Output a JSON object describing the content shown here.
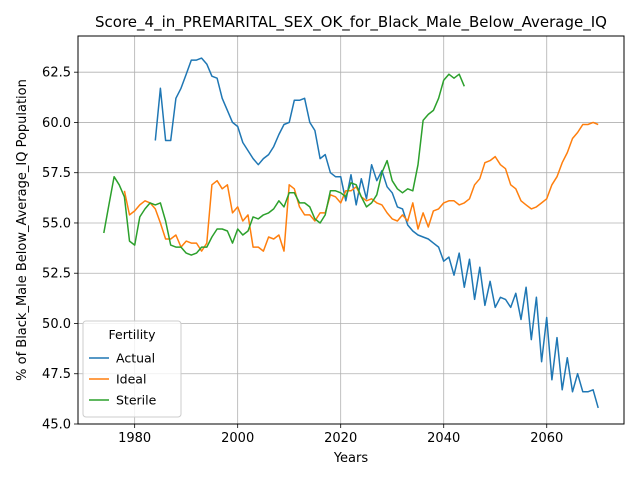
{
  "chart_data": {
    "type": "line",
    "title": "Score_4_in_PREMARITAL_SEX_OK_for_Black_Male_Below_Average_IQ",
    "xlabel": "Years",
    "ylabel": "% of Black_Male Below_Average_IQ Population",
    "xlim": [
      1969,
      2075
    ],
    "ylim": [
      45.0,
      64.3
    ],
    "xticks": [
      1980,
      2000,
      2020,
      2040,
      2060
    ],
    "yticks": [
      45.0,
      47.5,
      50.0,
      52.5,
      55.0,
      57.5,
      60.0,
      62.5
    ],
    "ytick_labels": [
      "45.0",
      "47.5",
      "50.0",
      "52.5",
      "55.0",
      "57.5",
      "60.0",
      "62.5"
    ],
    "grid": true,
    "legend": {
      "title": "Fertility",
      "placement": "lower-left"
    },
    "series": [
      {
        "name": "Actual",
        "color": "#1f77b4",
        "x": [
          1984,
          1985,
          1986,
          1987,
          1988,
          1989,
          1990,
          1991,
          1992,
          1993,
          1994,
          1995,
          1996,
          1997,
          1998,
          1999,
          2000,
          2001,
          2002,
          2003,
          2004,
          2005,
          2006,
          2007,
          2008,
          2009,
          2010,
          2011,
          2012,
          2013,
          2014,
          2015,
          2016,
          2017,
          2018,
          2019,
          2020,
          2021,
          2022,
          2023,
          2024,
          2025,
          2026,
          2027,
          2028,
          2029,
          2030,
          2031,
          2032,
          2033,
          2034,
          2035,
          2036,
          2037,
          2038,
          2039,
          2040,
          2041,
          2042,
          2043,
          2044,
          2045,
          2046,
          2047,
          2048,
          2049,
          2050,
          2051,
          2052,
          2053,
          2054,
          2055,
          2056,
          2057,
          2058,
          2059,
          2060,
          2061,
          2062,
          2063,
          2064,
          2065,
          2066,
          2067,
          2068,
          2069,
          2070
        ],
        "values": [
          59.1,
          61.7,
          59.1,
          59.1,
          61.2,
          61.7,
          62.4,
          63.1,
          63.1,
          63.2,
          62.9,
          62.3,
          62.2,
          61.2,
          60.6,
          60.0,
          59.8,
          59.0,
          58.6,
          58.2,
          57.9,
          58.2,
          58.4,
          58.8,
          59.4,
          59.9,
          60.0,
          61.1,
          61.1,
          61.2,
          60.0,
          59.6,
          58.2,
          58.4,
          57.5,
          57.3,
          57.3,
          56.1,
          57.4,
          55.9,
          57.2,
          56.2,
          57.9,
          57.1,
          57.6,
          56.8,
          56.5,
          55.8,
          55.7,
          54.9,
          54.6,
          54.4,
          54.3,
          54.2,
          54.0,
          53.8,
          53.1,
          53.3,
          52.4,
          53.5,
          51.8,
          53.2,
          51.2,
          52.8,
          50.9,
          52.1,
          50.8,
          51.3,
          51.2,
          50.8,
          51.5,
          50.2,
          51.8,
          49.2,
          51.3,
          48.1,
          50.3,
          47.2,
          49.3,
          46.7,
          48.3,
          46.6,
          47.5,
          46.6,
          46.6,
          46.7,
          45.8
        ]
      },
      {
        "name": "Ideal",
        "color": "#ff7f0e",
        "x": [
          1978,
          1979,
          1980,
          1981,
          1982,
          1983,
          1984,
          1985,
          1986,
          1987,
          1988,
          1989,
          1990,
          1991,
          1992,
          1993,
          1994,
          1995,
          1996,
          1997,
          1998,
          1999,
          2000,
          2001,
          2002,
          2003,
          2004,
          2005,
          2006,
          2007,
          2008,
          2009,
          2010,
          2011,
          2012,
          2013,
          2014,
          2015,
          2016,
          2017,
          2018,
          2019,
          2020,
          2021,
          2022,
          2023,
          2024,
          2025,
          2026,
          2027,
          2028,
          2029,
          2030,
          2031,
          2032,
          2033,
          2034,
          2035,
          2036,
          2037,
          2038,
          2039,
          2040,
          2041,
          2042,
          2043,
          2044,
          2045,
          2046,
          2047,
          2048,
          2049,
          2050,
          2051,
          2052,
          2053,
          2054,
          2055,
          2056,
          2057,
          2058,
          2059,
          2060,
          2061,
          2062,
          2063,
          2064,
          2065,
          2066,
          2067,
          2068,
          2069,
          2070
        ],
        "values": [
          56.6,
          55.4,
          55.6,
          55.9,
          56.1,
          56.0,
          55.7,
          55.0,
          54.2,
          54.2,
          54.4,
          53.8,
          54.1,
          54.0,
          54.0,
          53.6,
          54.0,
          56.9,
          57.1,
          56.7,
          56.9,
          55.5,
          55.8,
          55.1,
          55.4,
          53.8,
          53.8,
          53.6,
          54.3,
          54.2,
          54.4,
          53.6,
          56.9,
          56.7,
          55.8,
          55.4,
          55.4,
          55.1,
          55.5,
          55.5,
          56.4,
          56.3,
          56.0,
          56.6,
          56.6,
          56.8,
          56.3,
          56.1,
          56.2,
          56.0,
          55.9,
          55.5,
          55.2,
          55.1,
          55.4,
          55.1,
          56.0,
          54.7,
          55.5,
          54.8,
          55.6,
          55.7,
          56.0,
          56.1,
          56.1,
          55.9,
          56.0,
          56.2,
          56.9,
          57.2,
          58.0,
          58.1,
          58.3,
          57.9,
          57.7,
          56.9,
          56.7,
          56.1,
          55.9,
          55.7,
          55.8,
          56.0,
          56.2,
          56.9,
          57.3,
          58.0,
          58.5,
          59.2,
          59.5,
          59.9,
          59.9,
          60.0,
          59.9
        ]
      },
      {
        "name": "Sterile",
        "color": "#2ca02c",
        "x": [
          1974,
          1975,
          1976,
          1977,
          1978,
          1979,
          1980,
          1981,
          1982,
          1983,
          1984,
          1985,
          1986,
          1987,
          1988,
          1989,
          1990,
          1991,
          1992,
          1993,
          1994,
          1995,
          1996,
          1997,
          1998,
          1999,
          2000,
          2001,
          2002,
          2003,
          2004,
          2005,
          2006,
          2007,
          2008,
          2009,
          2010,
          2011,
          2012,
          2013,
          2014,
          2015,
          2016,
          2017,
          2018,
          2019,
          2020,
          2021,
          2022,
          2023,
          2024,
          2025,
          2026,
          2027,
          2028,
          2029,
          2030,
          2031,
          2032,
          2033,
          2034,
          2035,
          2036,
          2037,
          2038,
          2039,
          2040,
          2041,
          2042,
          2043,
          2044
        ],
        "values": [
          54.5,
          55.9,
          57.3,
          56.9,
          56.3,
          54.1,
          53.9,
          55.3,
          55.7,
          56.0,
          55.9,
          56.0,
          55.1,
          53.9,
          53.8,
          53.8,
          53.5,
          53.4,
          53.5,
          53.8,
          53.8,
          54.3,
          54.7,
          54.7,
          54.6,
          54.0,
          54.7,
          54.4,
          54.6,
          55.3,
          55.2,
          55.4,
          55.5,
          55.7,
          56.1,
          55.8,
          56.5,
          56.5,
          56.0,
          56.0,
          55.8,
          55.2,
          55.0,
          55.4,
          56.6,
          56.6,
          56.5,
          56.3,
          57.0,
          56.9,
          56.3,
          55.8,
          56.0,
          56.4,
          57.5,
          58.1,
          57.1,
          56.7,
          56.5,
          56.7,
          56.6,
          57.9,
          60.1,
          60.4,
          60.6,
          61.2,
          62.1,
          62.4,
          62.2,
          62.4,
          61.8
        ]
      }
    ]
  }
}
